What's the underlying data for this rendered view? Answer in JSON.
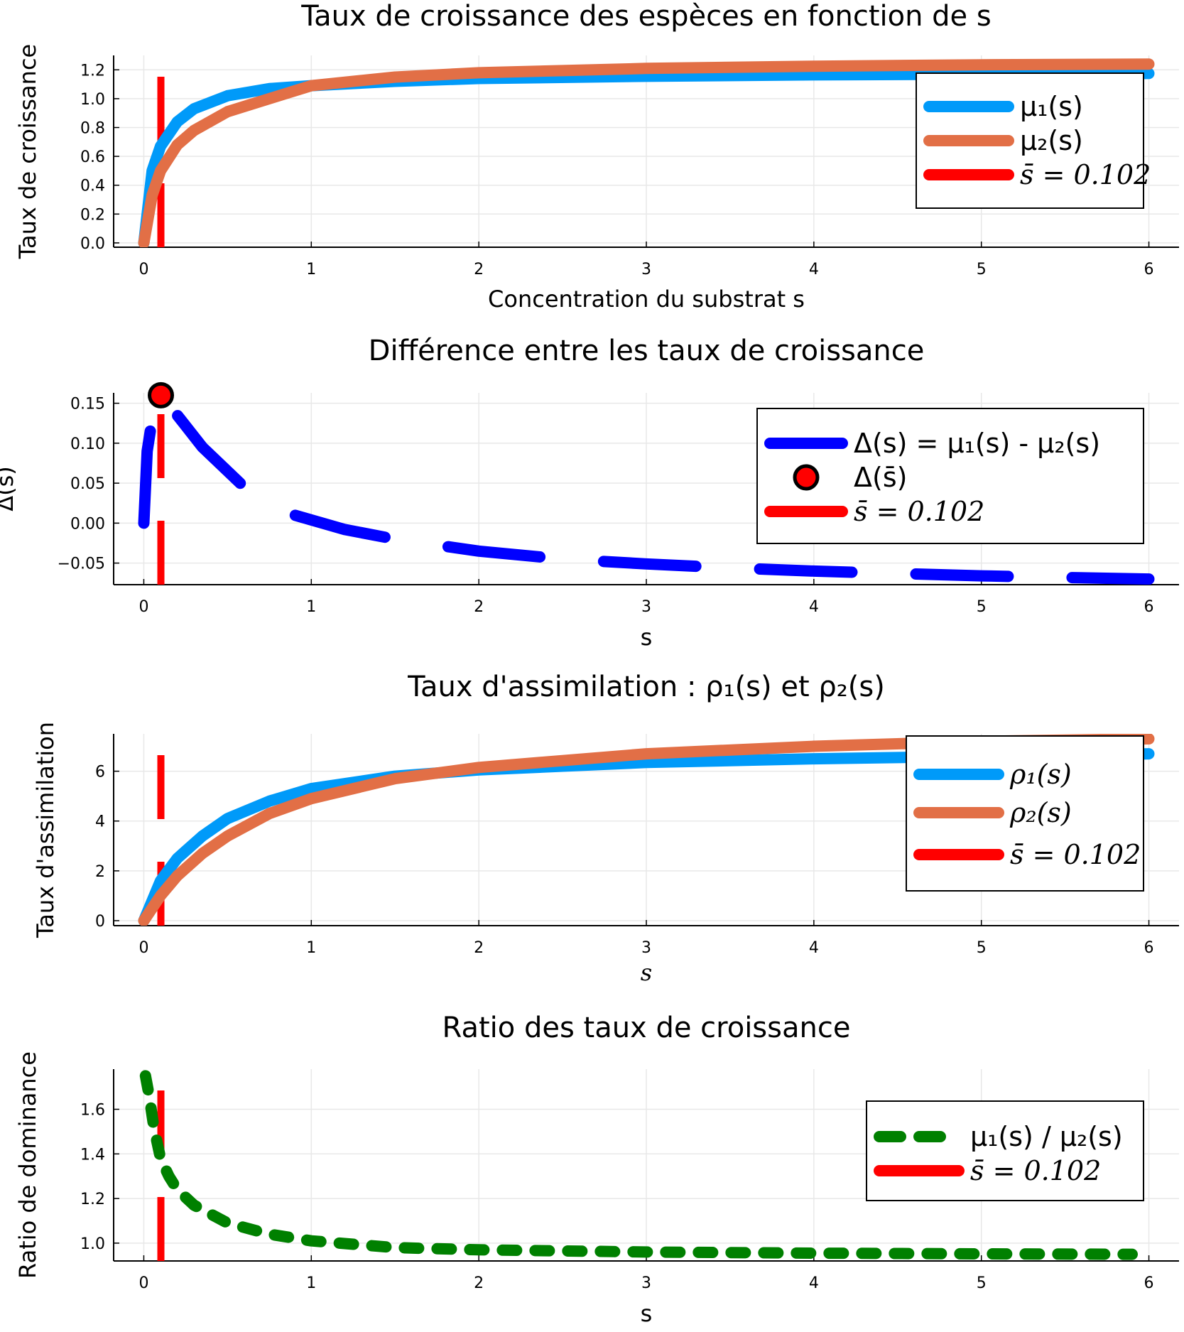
{
  "chart_data": [
    {
      "type": "line",
      "title": "Taux de croissance des espèces en fonction de s",
      "xlabel": "Concentration du substrat s",
      "ylabel": "Taux de croissance",
      "xlim": [
        -0.18,
        6.18
      ],
      "ylim": [
        -0.03,
        1.3
      ],
      "xticks": [
        0,
        1,
        2,
        3,
        4,
        5,
        6
      ],
      "xtick_labels": [
        "0",
        "1",
        "2",
        "3",
        "4",
        "5",
        "6"
      ],
      "yticks": [
        0,
        0.2,
        0.4,
        0.6,
        0.8,
        1.0,
        1.2
      ],
      "ytick_labels": [
        "0.0",
        "0.2",
        "0.4",
        "0.6",
        "0.8",
        "1.0",
        "1.2"
      ],
      "grid": true,
      "legend_position": "right",
      "series": [
        {
          "name": "μ₁(s)",
          "color": "#009af9",
          "style": "solid",
          "x": [
            0,
            0.05,
            0.1,
            0.2,
            0.3,
            0.5,
            0.75,
            1,
            1.5,
            2,
            3,
            4,
            5,
            6
          ],
          "y": [
            0,
            0.5,
            0.67,
            0.84,
            0.93,
            1.02,
            1.07,
            1.09,
            1.12,
            1.14,
            1.155,
            1.165,
            1.17,
            1.175
          ]
        },
        {
          "name": "μ₂(s)",
          "color": "#e26f46",
          "style": "solid",
          "x": [
            0,
            0.05,
            0.1,
            0.2,
            0.3,
            0.5,
            0.75,
            1,
            1.5,
            2,
            3,
            4,
            5,
            6
          ],
          "y": [
            0,
            0.33,
            0.5,
            0.68,
            0.78,
            0.91,
            1.0,
            1.09,
            1.15,
            1.18,
            1.21,
            1.225,
            1.235,
            1.24
          ]
        }
      ],
      "vline": {
        "name": "s̄ = 0.102",
        "x": 0.102,
        "color": "#ff0000",
        "style": "dashed"
      }
    },
    {
      "type": "line",
      "title": "Différence entre les taux de croissance",
      "xlabel": "s",
      "ylabel": "Δ(s)",
      "xlim": [
        -0.18,
        6.18
      ],
      "ylim": [
        -0.077,
        0.163
      ],
      "xticks": [
        0,
        1,
        2,
        3,
        4,
        5,
        6
      ],
      "xtick_labels": [
        "0",
        "1",
        "2",
        "3",
        "4",
        "5",
        "6"
      ],
      "yticks": [
        -0.05,
        0,
        0.05,
        0.1,
        0.15
      ],
      "ytick_labels": [
        "−0.05",
        "0.00",
        "0.05",
        "0.10",
        "0.15"
      ],
      "grid": true,
      "legend_position": "right",
      "series": [
        {
          "name": "Δ(s) = μ₁(s) - μ₂(s)",
          "color": "#0000ff",
          "style": "dashed",
          "x": [
            0,
            0.02,
            0.05,
            0.102,
            0.2,
            0.35,
            0.6,
            0.9,
            1.2,
            1.5,
            2,
            2.5,
            3,
            3.5,
            4,
            4.5,
            5,
            5.5,
            6
          ],
          "y": [
            0,
            0.09,
            0.13,
            0.16,
            0.135,
            0.095,
            0.045,
            0.01,
            -0.008,
            -0.02,
            -0.035,
            -0.045,
            -0.051,
            -0.056,
            -0.06,
            -0.063,
            -0.066,
            -0.068,
            -0.07
          ]
        },
        {
          "name": "Δ(s̄)",
          "color": "#ff0000",
          "style": "marker",
          "x": [
            0.102
          ],
          "y": [
            0.16
          ]
        }
      ],
      "vline": {
        "name": "s̄ = 0.102",
        "x": 0.102,
        "color": "#ff0000",
        "style": "dashed"
      }
    },
    {
      "type": "line",
      "title": "Taux d'assimilation : ρ₁(s) et ρ₂(s)",
      "xlabel": "s",
      "ylabel": "Taux d'assimilation",
      "xlim": [
        -0.18,
        6.18
      ],
      "ylim": [
        -0.2,
        7.5
      ],
      "xticks": [
        0,
        1,
        2,
        3,
        4,
        5,
        6
      ],
      "xtick_labels": [
        "0",
        "1",
        "2",
        "3",
        "4",
        "5",
        "6"
      ],
      "yticks": [
        0,
        2,
        4,
        6
      ],
      "ytick_labels": [
        "0",
        "2",
        "4",
        "6"
      ],
      "grid": true,
      "legend_position": "right",
      "series": [
        {
          "name": "ρ₁(s)",
          "color": "#009af9",
          "style": "solid",
          "x": [
            0,
            0.1,
            0.2,
            0.35,
            0.5,
            0.75,
            1,
            1.5,
            2,
            3,
            4,
            5,
            6
          ],
          "y": [
            0,
            1.6,
            2.5,
            3.4,
            4.1,
            4.8,
            5.3,
            5.8,
            6.05,
            6.35,
            6.5,
            6.6,
            6.7
          ]
        },
        {
          "name": "ρ₂(s)",
          "color": "#e26f46",
          "style": "solid",
          "x": [
            0,
            0.1,
            0.2,
            0.35,
            0.5,
            0.75,
            1,
            1.5,
            2,
            3,
            4,
            5,
            6
          ],
          "y": [
            0,
            1.0,
            1.8,
            2.7,
            3.4,
            4.3,
            4.9,
            5.7,
            6.15,
            6.7,
            7.0,
            7.2,
            7.3
          ]
        }
      ],
      "vline": {
        "name": "s̄ = 0.102",
        "x": 0.102,
        "color": "#ff0000",
        "style": "dashed"
      }
    },
    {
      "type": "line",
      "title": "Ratio des taux de croissance",
      "xlabel": "s",
      "ylabel": "Ratio de dominance",
      "xlim": [
        -0.18,
        6.18
      ],
      "ylim": [
        0.92,
        1.78
      ],
      "xticks": [
        0,
        1,
        2,
        3,
        4,
        5,
        6
      ],
      "xtick_labels": [
        "0",
        "1",
        "2",
        "3",
        "4",
        "5",
        "6"
      ],
      "yticks": [
        1.0,
        1.2,
        1.4,
        1.6
      ],
      "ytick_labels": [
        "1.0",
        "1.2",
        "1.4",
        "1.6"
      ],
      "grid": true,
      "legend_position": "right",
      "series": [
        {
          "name": "μ₁(s) / μ₂(s)",
          "color": "#008000",
          "style": "dashed",
          "x": [
            0.01,
            0.03,
            0.06,
            0.1,
            0.15,
            0.2,
            0.3,
            0.5,
            0.75,
            1,
            1.5,
            2,
            3,
            4,
            5,
            5.9
          ],
          "y": [
            1.75,
            1.67,
            1.52,
            1.38,
            1.3,
            1.24,
            1.17,
            1.09,
            1.04,
            1.01,
            0.98,
            0.97,
            0.96,
            0.955,
            0.952,
            0.95
          ]
        }
      ],
      "vline": {
        "name": "s̄ = 0.102",
        "x": 0.102,
        "color": "#ff0000",
        "style": "dashed"
      }
    }
  ]
}
